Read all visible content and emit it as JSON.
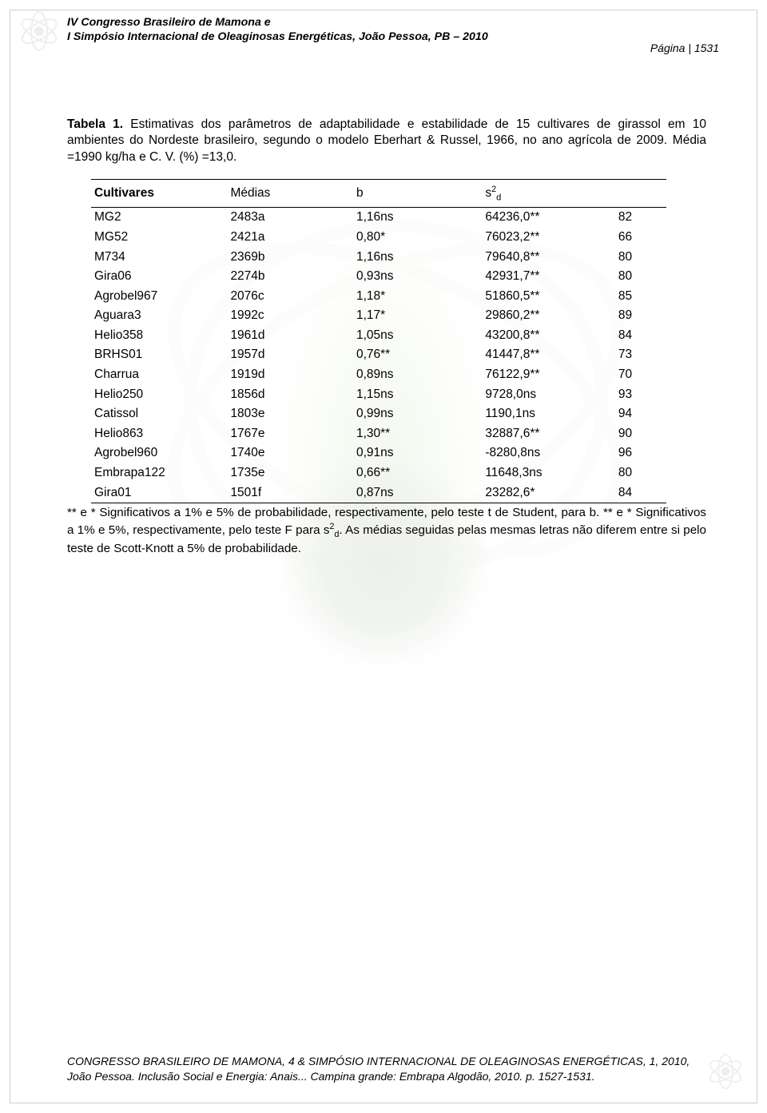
{
  "page": {
    "header_line1": "IV Congresso Brasileiro de Mamona e",
    "header_line2": "I Simpósio Internacional de Oleaginosas Energéticas, João Pessoa, PB – 2010",
    "page_number": "Página | 1531"
  },
  "caption": {
    "label": "Tabela 1.",
    "text": " Estimativas dos parâmetros de adaptabilidade e estabilidade de 15  cultivares de girassol em 10 ambientes do Nordeste brasileiro, segundo o modelo Eberhart & Russel, 1966, no ano agrícola de 2009. Média =1990  kg/ha e C. V. (%) =13,0."
  },
  "table": {
    "columns": {
      "c1": "Cultivares",
      "c2": "Médias",
      "c3": "b",
      "c4_pre": "s",
      "c4_sup": "2",
      "c4_sub": "d",
      "c5": ""
    },
    "rows": [
      {
        "c1": "MG2",
        "c2": "2483a",
        "c3": "1,16ns",
        "c4": "64236,0**",
        "c5": "82"
      },
      {
        "c1": "MG52",
        "c2": "2421a",
        "c3": "0,80*",
        "c4": "76023,2**",
        "c5": "66"
      },
      {
        "c1": "M734",
        "c2": "2369b",
        "c3": "1,16ns",
        "c4": "79640,8**",
        "c5": "80"
      },
      {
        "c1": "Gira06",
        "c2": "2274b",
        "c3": "0,93ns",
        "c4": "42931,7**",
        "c5": "80"
      },
      {
        "c1": "Agrobel967",
        "c2": "2076c",
        "c3": "1,18*",
        "c4": "51860,5**",
        "c5": "85"
      },
      {
        "c1": "Aguara3",
        "c2": "1992c",
        "c3": "1,17*",
        "c4": "29860,2**",
        "c5": "89"
      },
      {
        "c1": "Helio358",
        "c2": "1961d",
        "c3": "1,05ns",
        "c4": "43200,8**",
        "c5": "84"
      },
      {
        "c1": "BRHS01",
        "c2": "1957d",
        "c3": "0,76**",
        "c4": "41447,8**",
        "c5": "73"
      },
      {
        "c1": "Charrua",
        "c2": "1919d",
        "c3": "0,89ns",
        "c4": "76122,9**",
        "c5": "70"
      },
      {
        "c1": "Helio250",
        "c2": "1856d",
        "c3": "1,15ns",
        "c4": "9728,0ns",
        "c5": "93"
      },
      {
        "c1": "Catissol",
        "c2": "1803e",
        "c3": "0,99ns",
        "c4": "1190,1ns",
        "c5": "94"
      },
      {
        "c1": "Helio863",
        "c2": "1767e",
        "c3": "1,30**",
        "c4": "32887,6**",
        "c5": "90"
      },
      {
        "c1": "Agrobel960",
        "c2": "1740e",
        "c3": "0,91ns",
        "c4": "-8280,8ns",
        "c5": "96"
      },
      {
        "c1": "Embrapa122",
        "c2": "1735e",
        "c3": "0,66**",
        "c4": "11648,3ns",
        "c5": "80"
      },
      {
        "c1": "Gira01",
        "c2": "1501f",
        "c3": "0,87ns",
        "c4": "23282,6*",
        "c5": "84"
      }
    ]
  },
  "footnote": {
    "part1": "** e * Significativos a 1% e 5% de probabilidade, respectivamente, pelo teste t de Student, para b. ** e * Significativos a 1% e 5%, respectivamente, pelo teste F para s",
    "sup": "2",
    "sub": "d",
    "part2": ". As médias seguidas pelas mesmas letras não diferem entre si pelo teste de Scott-Knott a 5% de probabilidade."
  },
  "footer": {
    "line1": "CONGRESSO BRASILEIRO DE MAMONA, 4 & SIMPÓSIO INTERNACIONAL DE OLEAGINOSAS ENERGÉTICAS, 1, 2010,",
    "line2": "João Pessoa. Inclusão Social e Energia: Anais... Campina grande: Embrapa Algodão, 2010. p. 1527-1531."
  },
  "colors": {
    "text": "#000000",
    "border": "#cfcfcf",
    "rule": "#000000",
    "background": "#ffffff"
  }
}
